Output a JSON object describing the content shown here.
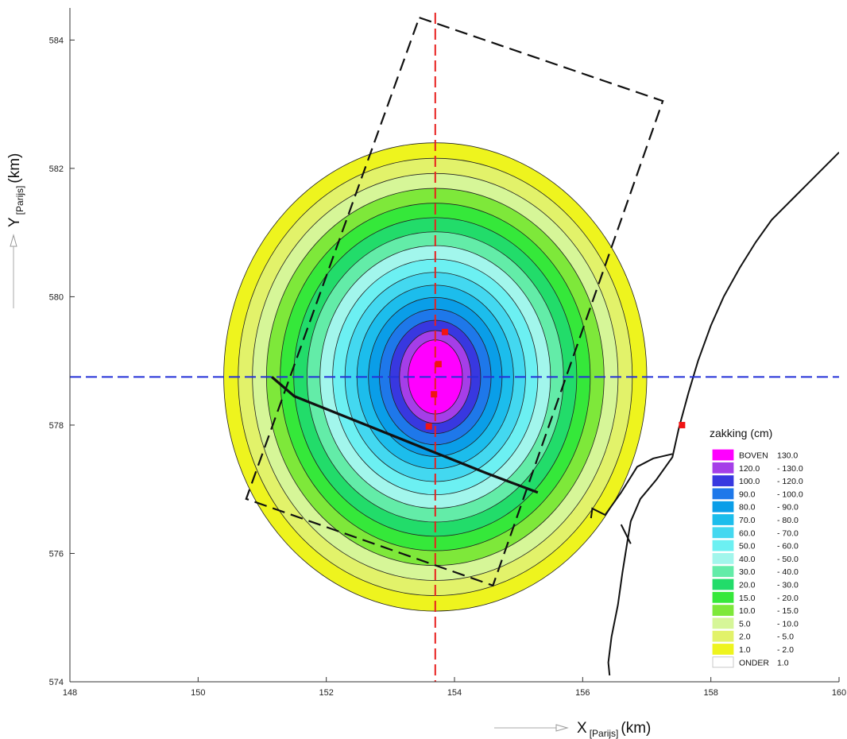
{
  "chart_data": {
    "type": "contour",
    "xlabel": {
      "main": "X",
      "sub": "[Parijs]",
      "unit": "(km)"
    },
    "ylabel": {
      "main": "Y",
      "sub": "[Parijs]",
      "unit": "(km)"
    },
    "xlim": [
      148,
      160
    ],
    "ylim": [
      574,
      584.5
    ],
    "xticks": [
      148,
      150,
      152,
      154,
      156,
      158,
      160
    ],
    "yticks": [
      574,
      576,
      578,
      580,
      582,
      584
    ],
    "grid": false,
    "legend_position": "right",
    "legend": {
      "title": "zakking (cm)",
      "entries": [
        {
          "from": "BOVEN",
          "to": "130.0",
          "color": "#ff00ff"
        },
        {
          "from": "120.0",
          "to": "- 130.0",
          "color": "#a53ee8"
        },
        {
          "from": "100.0",
          "to": "- 120.0",
          "color": "#3838e0"
        },
        {
          "from": "90.0",
          "to": "- 100.0",
          "color": "#1e78ea"
        },
        {
          "from": "80.0",
          "to": "- 90.0",
          "color": "#0a9ee8"
        },
        {
          "from": "70.0",
          "to": "- 80.0",
          "color": "#1cbdec"
        },
        {
          "from": "60.0",
          "to": "- 70.0",
          "color": "#43d8f0"
        },
        {
          "from": "50.0",
          "to": "- 60.0",
          "color": "#6cf0f2"
        },
        {
          "from": "40.0",
          "to": "- 50.0",
          "color": "#a2f6ec"
        },
        {
          "from": "30.0",
          "to": "- 40.0",
          "color": "#63eca8"
        },
        {
          "from": "20.0",
          "to": "- 30.0",
          "color": "#22dc6a"
        },
        {
          "from": "15.0",
          "to": "- 20.0",
          "color": "#35e83a"
        },
        {
          "from": "10.0",
          "to": "- 15.0",
          "color": "#7ee83a"
        },
        {
          "from": "5.0",
          "to": "- 10.0",
          "color": "#d6f698"
        },
        {
          "from": "2.0",
          "to": "- 5.0",
          "color": "#e2f26a"
        },
        {
          "from": "1.0",
          "to": "- 2.0",
          "color": "#eef41e"
        },
        {
          "from": "ONDER",
          "to": "1.0",
          "color": "#ffffff"
        }
      ]
    },
    "contours": {
      "center": [
        153.7,
        578.75
      ],
      "levels_cm": [
        130,
        120,
        100,
        90,
        80,
        70,
        60,
        50,
        40,
        30,
        20,
        15,
        10,
        5,
        2,
        1
      ],
      "outer_extent": {
        "x": [
          150.4,
          157.0
        ],
        "y": [
          575.1,
          582.4
        ]
      }
    },
    "red_vertical_line_x": 153.7,
    "blue_horizontal_line_y": 578.75,
    "dashed_polygon": [
      [
        153.45,
        584.35
      ],
      [
        157.25,
        583.05
      ],
      [
        154.6,
        575.5
      ],
      [
        150.75,
        576.85
      ],
      [
        153.45,
        584.35
      ]
    ],
    "solid_line": [
      [
        151.15,
        578.75
      ],
      [
        151.5,
        578.45
      ],
      [
        152.5,
        578.05
      ],
      [
        153.5,
        577.65
      ],
      [
        154.5,
        577.25
      ],
      [
        155.3,
        576.95
      ]
    ],
    "red_markers": [
      [
        153.85,
        579.45
      ],
      [
        153.75,
        578.95
      ],
      [
        153.68,
        578.48
      ],
      [
        153.6,
        577.98
      ],
      [
        157.55,
        578.0
      ]
    ],
    "coastline": [
      [
        [
          160.0,
          582.25
        ],
        [
          159.7,
          581.95
        ],
        [
          159.3,
          581.55
        ],
        [
          158.95,
          581.2
        ],
        [
          158.7,
          580.85
        ],
        [
          158.45,
          580.45
        ],
        [
          158.2,
          580.0
        ],
        [
          158.0,
          579.55
        ],
        [
          157.8,
          579.0
        ],
        [
          157.65,
          578.5
        ],
        [
          157.5,
          577.95
        ],
        [
          157.4,
          577.5
        ],
        [
          157.15,
          577.15
        ],
        [
          156.9,
          576.85
        ],
        [
          156.75,
          576.5
        ],
        [
          156.7,
          576.2
        ],
        [
          156.62,
          575.7
        ],
        [
          156.55,
          575.2
        ],
        [
          156.45,
          574.7
        ],
        [
          156.4,
          574.3
        ],
        [
          156.42,
          574.1
        ]
      ],
      [
        [
          157.4,
          577.55
        ],
        [
          157.1,
          577.48
        ],
        [
          156.85,
          577.35
        ],
        [
          156.6,
          576.95
        ],
        [
          156.35,
          576.6
        ],
        [
          156.15,
          576.7
        ],
        [
          156.13,
          576.55
        ]
      ],
      [
        [
          156.6,
          576.45
        ],
        [
          156.75,
          576.15
        ]
      ]
    ]
  }
}
